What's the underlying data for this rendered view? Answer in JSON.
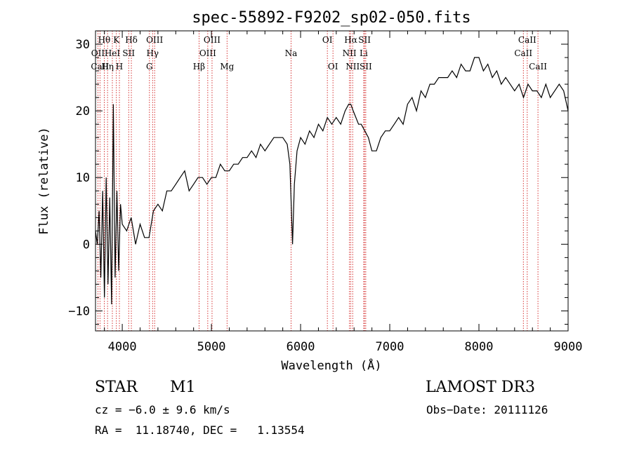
{
  "chart_data": {
    "type": "line",
    "title": "spec-55892-F9202_sp02-050.fits",
    "xlabel": "Wavelength (Å)",
    "ylabel": "Flux (relative)",
    "xlim": [
      3700,
      9000
    ],
    "ylim": [
      -13,
      32
    ],
    "xticks": [
      4000,
      5000,
      6000,
      7000,
      8000,
      9000
    ],
    "yticks": [
      -10,
      0,
      10,
      20,
      30
    ],
    "series": [
      {
        "name": "flux",
        "x": [
          3700,
          3720,
          3740,
          3760,
          3780,
          3800,
          3820,
          3840,
          3860,
          3880,
          3900,
          3920,
          3940,
          3960,
          3980,
          4000,
          4050,
          4100,
          4150,
          4200,
          4250,
          4300,
          4350,
          4400,
          4450,
          4500,
          4550,
          4600,
          4650,
          4700,
          4750,
          4800,
          4850,
          4900,
          4950,
          5000,
          5050,
          5100,
          5150,
          5200,
          5250,
          5300,
          5350,
          5400,
          5450,
          5500,
          5550,
          5600,
          5650,
          5700,
          5750,
          5800,
          5850,
          5880,
          5895,
          5910,
          5930,
          5960,
          6000,
          6050,
          6100,
          6150,
          6200,
          6250,
          6300,
          6350,
          6400,
          6450,
          6500,
          6540,
          6563,
          6590,
          6620,
          6650,
          6680,
          6720,
          6760,
          6800,
          6850,
          6900,
          6950,
          7000,
          7050,
          7100,
          7150,
          7200,
          7250,
          7300,
          7350,
          7400,
          7450,
          7500,
          7550,
          7600,
          7650,
          7700,
          7750,
          7800,
          7850,
          7900,
          7950,
          8000,
          8050,
          8100,
          8150,
          8200,
          8250,
          8300,
          8350,
          8400,
          8450,
          8500,
          8550,
          8600,
          8650,
          8700,
          8750,
          8800,
          8850,
          8900,
          8950,
          9000
        ],
        "values": [
          2,
          0,
          5,
          -5,
          8,
          -8,
          10,
          -6,
          7,
          -9,
          21,
          -5,
          8,
          -4,
          6,
          3,
          2,
          4,
          0,
          3,
          1,
          1,
          5,
          6,
          5,
          8,
          8,
          9,
          10,
          11,
          8,
          9,
          10,
          10,
          9,
          10,
          10,
          12,
          11,
          11,
          12,
          12,
          13,
          13,
          14,
          13,
          15,
          14,
          15,
          16,
          16,
          16,
          15,
          12,
          6,
          0,
          9,
          14,
          16,
          15,
          17,
          16,
          18,
          17,
          19,
          18,
          19,
          18,
          20,
          21,
          21,
          20,
          19,
          18,
          18,
          17,
          16,
          14,
          14,
          16,
          17,
          17,
          18,
          19,
          18,
          21,
          22,
          20,
          23,
          22,
          24,
          24,
          25,
          25,
          25,
          26,
          25,
          27,
          26,
          26,
          28,
          28,
          26,
          27,
          25,
          26,
          24,
          25,
          24,
          23,
          24,
          22,
          24,
          23,
          23,
          22,
          24,
          22,
          23,
          24,
          23,
          20
        ]
      }
    ],
    "lines": [
      {
        "label": "Hθ",
        "wl": 3798,
        "row": 0
      },
      {
        "label": "OII",
        "wl": 3727,
        "row": 1
      },
      {
        "label": "CaII",
        "wl": 3750,
        "row": 2
      },
      {
        "label": "Hη",
        "wl": 3835,
        "row": 2
      },
      {
        "label": "HeI",
        "wl": 3889,
        "row": 1
      },
      {
        "label": "K",
        "wl": 3934,
        "row": 0
      },
      {
        "label": "H",
        "wl": 3968,
        "row": 2
      },
      {
        "label": "SII",
        "wl": 4072,
        "row": 1
      },
      {
        "label": "Hδ",
        "wl": 4102,
        "row": 0
      },
      {
        "label": "OIII",
        "wl": 4363,
        "row": 0
      },
      {
        "label": "Hγ",
        "wl": 4340,
        "row": 1
      },
      {
        "label": "G",
        "wl": 4305,
        "row": 2
      },
      {
        "label": "Hβ",
        "wl": 4861,
        "row": 2
      },
      {
        "label": "OIII",
        "wl": 5007,
        "row": 0
      },
      {
        "label": "OIII",
        "wl": 4959,
        "row": 1
      },
      {
        "label": "Mg",
        "wl": 5175,
        "row": 2
      },
      {
        "label": "Na",
        "wl": 5893,
        "row": 1
      },
      {
        "label": "OI",
        "wl": 6300,
        "row": 0
      },
      {
        "label": "OI",
        "wl": 6363,
        "row": 2
      },
      {
        "label": "Hα",
        "wl": 6563,
        "row": 0
      },
      {
        "label": "NII",
        "wl": 6548,
        "row": 1
      },
      {
        "label": "NII",
        "wl": 6584,
        "row": 2
      },
      {
        "label": "SII",
        "wl": 6717,
        "row": 0
      },
      {
        "label": "Li",
        "wl": 6708,
        "row": 1
      },
      {
        "label": "SII",
        "wl": 6731,
        "row": 2
      },
      {
        "label": "CaII",
        "wl": 8498,
        "row": 1
      },
      {
        "label": "CaII",
        "wl": 8542,
        "row": 0
      },
      {
        "label": "CaII",
        "wl": 8662,
        "row": 2
      }
    ],
    "line_color": "#cc0000"
  },
  "footer": {
    "type": "STAR",
    "subclass": "M1",
    "survey": "LAMOST DR3",
    "cz": "cz = −6.0 ± 9.6 km/s",
    "obs_date": "Obs−Date: 20111126",
    "radec": "RA =  11.18740, DEC =   1.13554"
  }
}
